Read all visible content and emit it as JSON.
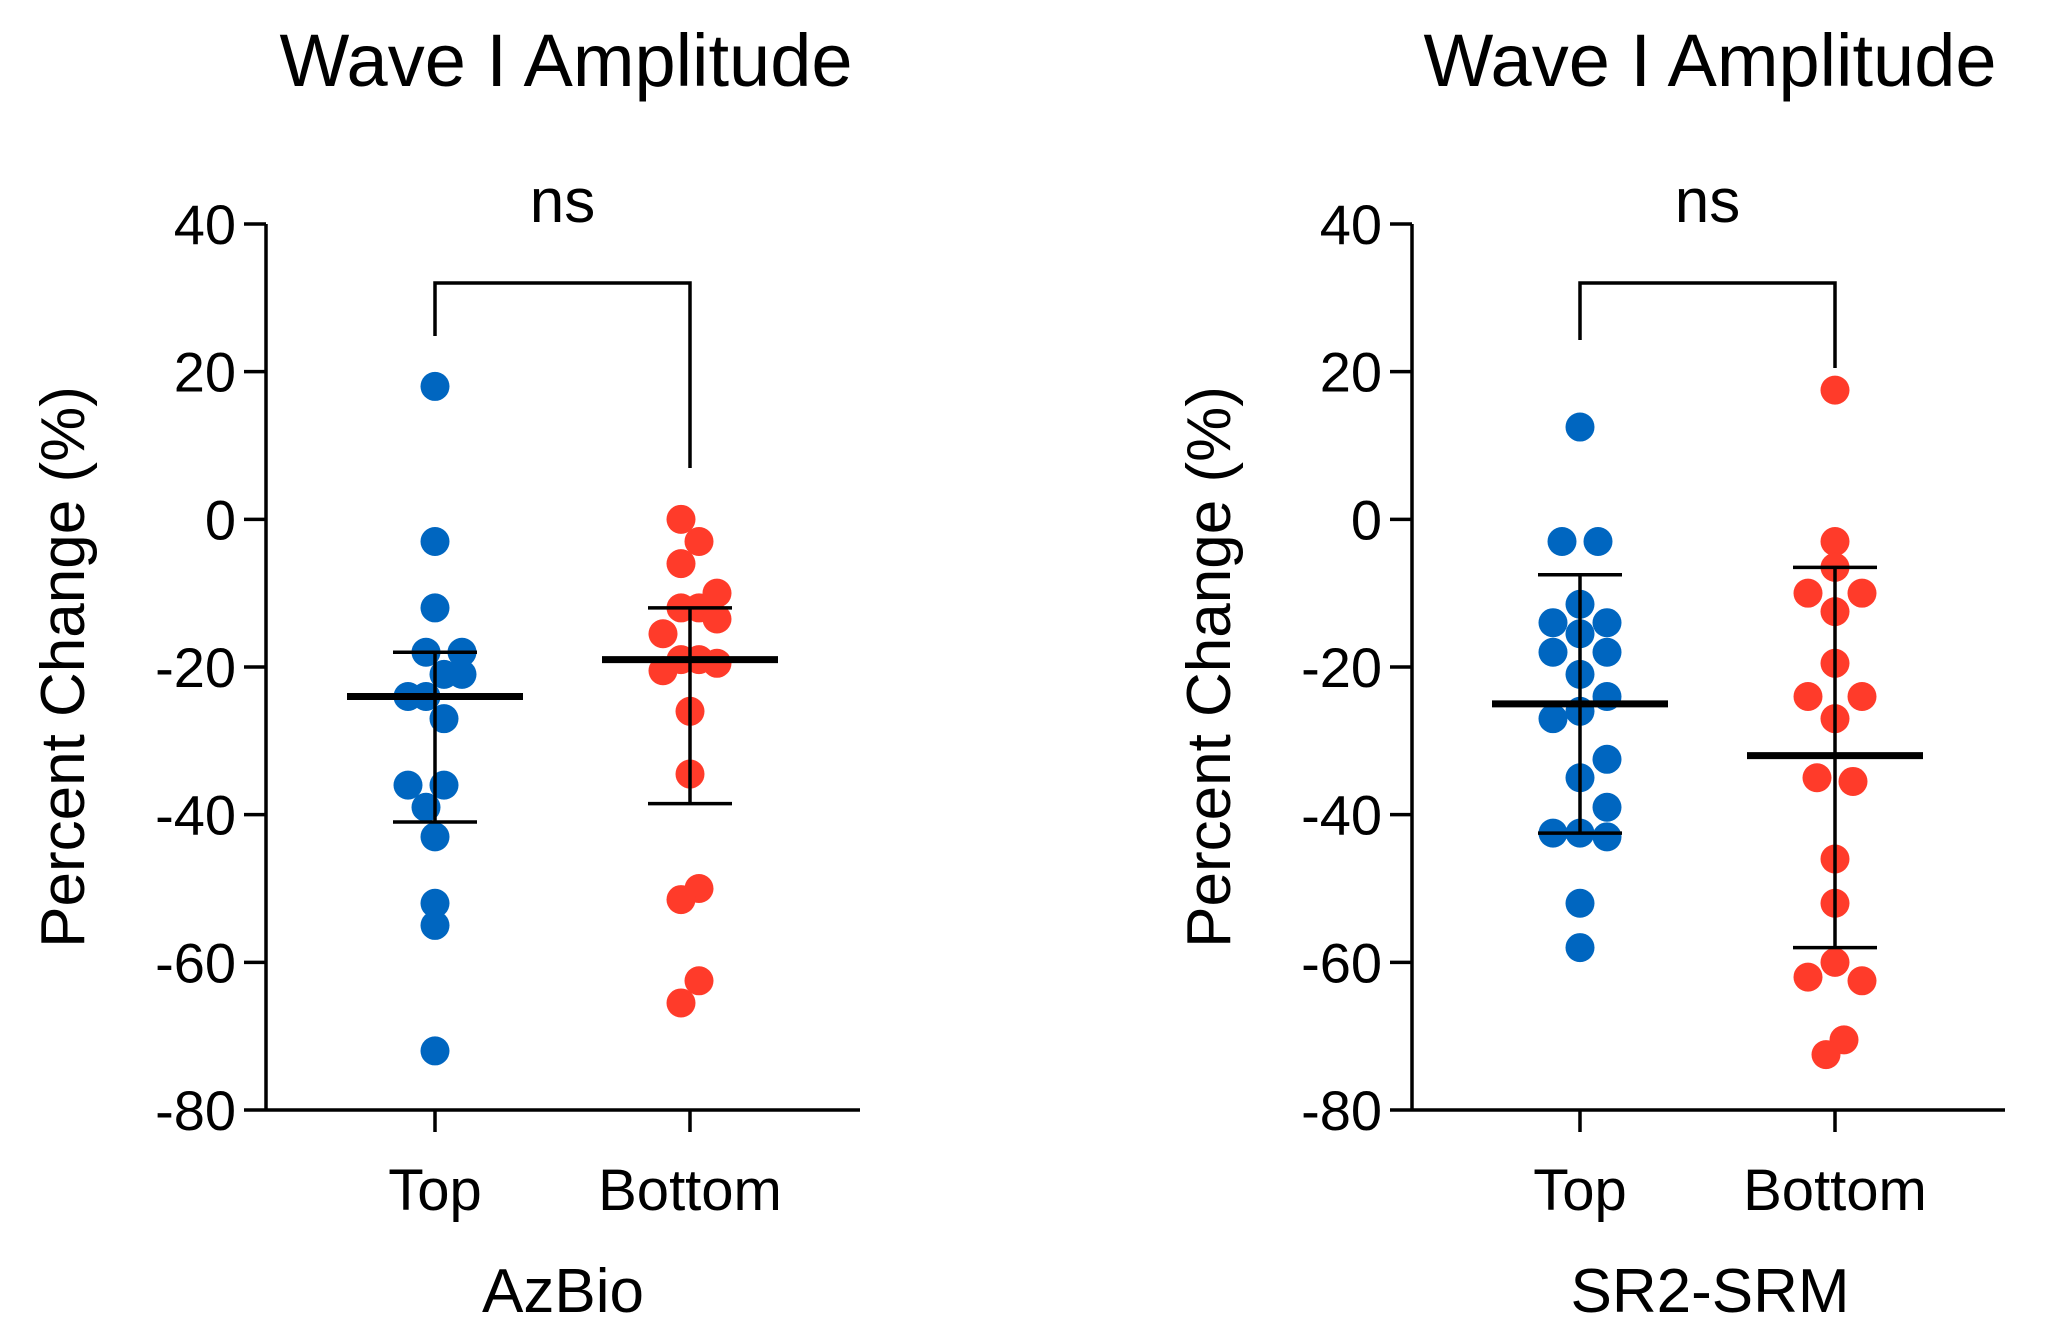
{
  "chart_data": [
    {
      "type": "scatter",
      "title": "Wave I Amplitude",
      "xlabel": "AzBio",
      "ylabel": "Percent Change (%)",
      "ylim": [
        -80,
        40
      ],
      "yticks": [
        "40",
        "20",
        "0",
        "-20",
        "-40",
        "-60",
        "-80"
      ],
      "ytick_values": [
        40,
        20,
        0,
        -20,
        -40,
        -60,
        -80
      ],
      "categories": [
        "Top",
        "Bottom"
      ],
      "significance": "ns",
      "series": [
        {
          "name": "Top",
          "color": "#0066c0",
          "mean": -24,
          "sd_upper": -18,
          "sd_lower": -41,
          "points": [
            {
              "jitter": 0,
              "value": 18
            },
            {
              "jitter": 0,
              "value": -3
            },
            {
              "jitter": 0,
              "value": -12
            },
            {
              "jitter": -0.3,
              "value": -18
            },
            {
              "jitter": 0.9,
              "value": -18
            },
            {
              "jitter": 0.3,
              "value": -21
            },
            {
              "jitter": 0.9,
              "value": -21
            },
            {
              "jitter": -0.9,
              "value": -24
            },
            {
              "jitter": -0.3,
              "value": -24
            },
            {
              "jitter": 0.3,
              "value": -27
            },
            {
              "jitter": -0.9,
              "value": -36
            },
            {
              "jitter": 0.3,
              "value": -36
            },
            {
              "jitter": -0.3,
              "value": -39
            },
            {
              "jitter": 0,
              "value": -43
            },
            {
              "jitter": 0,
              "value": -52
            },
            {
              "jitter": 0,
              "value": -55
            },
            {
              "jitter": 0,
              "value": -72
            }
          ]
        },
        {
          "name": "Bottom",
          "color": "#ff3b2a",
          "mean": -19,
          "sd_upper": -12,
          "sd_lower": -38.5,
          "points": [
            {
              "jitter": -0.3,
              "value": 0
            },
            {
              "jitter": 0.3,
              "value": -3
            },
            {
              "jitter": -0.3,
              "value": -6
            },
            {
              "jitter": 0.9,
              "value": -10
            },
            {
              "jitter": -0.3,
              "value": -12
            },
            {
              "jitter": 0.3,
              "value": -12
            },
            {
              "jitter": 0.9,
              "value": -13.5
            },
            {
              "jitter": -0.9,
              "value": -15.5
            },
            {
              "jitter": -0.3,
              "value": -19
            },
            {
              "jitter": 0.3,
              "value": -19
            },
            {
              "jitter": 0.9,
              "value": -19.5
            },
            {
              "jitter": -0.9,
              "value": -20.5
            },
            {
              "jitter": 0,
              "value": -26
            },
            {
              "jitter": 0,
              "value": -34.5
            },
            {
              "jitter": 0.3,
              "value": -50
            },
            {
              "jitter": -0.3,
              "value": -51.5
            },
            {
              "jitter": 0.3,
              "value": -62.5
            },
            {
              "jitter": -0.3,
              "value": -65.5
            }
          ]
        }
      ]
    },
    {
      "type": "scatter",
      "title": "Wave I Amplitude",
      "xlabel": "SR2-SRM",
      "ylabel": "Percent Change (%)",
      "ylim": [
        -80,
        40
      ],
      "yticks": [
        "40",
        "20",
        "0",
        "-20",
        "-40",
        "-60",
        "-80"
      ],
      "ytick_values": [
        40,
        20,
        0,
        -20,
        -40,
        -60,
        -80
      ],
      "categories": [
        "Top",
        "Bottom"
      ],
      "significance": "ns",
      "series": [
        {
          "name": "Top",
          "color": "#0066c0",
          "mean": -25,
          "sd_upper": -7.5,
          "sd_lower": -42.5,
          "points": [
            {
              "jitter": 0,
              "value": 12.5
            },
            {
              "jitter": -0.6,
              "value": -3
            },
            {
              "jitter": 0.6,
              "value": -3
            },
            {
              "jitter": 0,
              "value": -11.5
            },
            {
              "jitter": -0.9,
              "value": -14
            },
            {
              "jitter": 0.9,
              "value": -14
            },
            {
              "jitter": 0,
              "value": -15.5
            },
            {
              "jitter": -0.9,
              "value": -18
            },
            {
              "jitter": 0.9,
              "value": -18
            },
            {
              "jitter": 0,
              "value": -21
            },
            {
              "jitter": 0.9,
              "value": -24
            },
            {
              "jitter": 0,
              "value": -26
            },
            {
              "jitter": -0.9,
              "value": -27
            },
            {
              "jitter": 0.9,
              "value": -32.5
            },
            {
              "jitter": 0,
              "value": -35
            },
            {
              "jitter": 0.9,
              "value": -39
            },
            {
              "jitter": -0.9,
              "value": -42.5
            },
            {
              "jitter": 0,
              "value": -42.5
            },
            {
              "jitter": 0.9,
              "value": -43
            },
            {
              "jitter": 0,
              "value": -52
            },
            {
              "jitter": 0,
              "value": -58
            }
          ]
        },
        {
          "name": "Bottom",
          "color": "#ff3b2a",
          "mean": -32,
          "sd_upper": -6.5,
          "sd_lower": -58,
          "points": [
            {
              "jitter": 0,
              "value": 17.5
            },
            {
              "jitter": 0,
              "value": -3
            },
            {
              "jitter": 0,
              "value": -6.5
            },
            {
              "jitter": -0.9,
              "value": -10
            },
            {
              "jitter": 0.9,
              "value": -10
            },
            {
              "jitter": 0,
              "value": -12.5
            },
            {
              "jitter": 0,
              "value": -19.5
            },
            {
              "jitter": -0.9,
              "value": -24
            },
            {
              "jitter": 0.9,
              "value": -24
            },
            {
              "jitter": 0,
              "value": -27
            },
            {
              "jitter": -0.6,
              "value": -35
            },
            {
              "jitter": 0.6,
              "value": -35.5
            },
            {
              "jitter": 0,
              "value": -46
            },
            {
              "jitter": 0,
              "value": -52
            },
            {
              "jitter": 0,
              "value": -60
            },
            {
              "jitter": -0.9,
              "value": -62
            },
            {
              "jitter": 0.9,
              "value": -62.5
            },
            {
              "jitter": 0.3,
              "value": -70.5
            },
            {
              "jitter": -0.3,
              "value": -72.5
            }
          ]
        }
      ]
    }
  ]
}
